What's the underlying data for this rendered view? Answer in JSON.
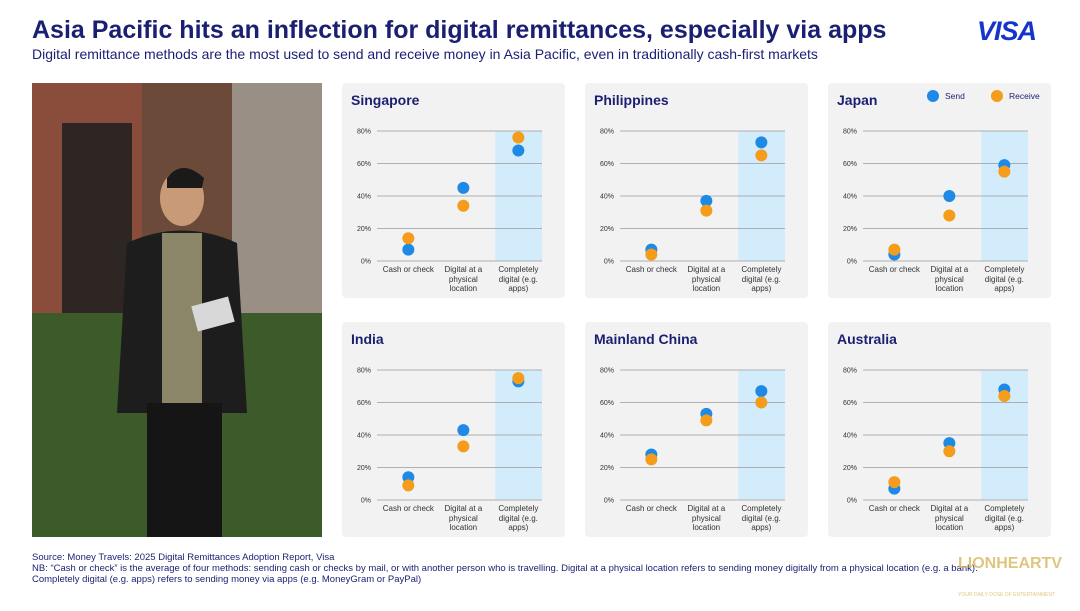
{
  "header": {
    "title": "Asia Pacific hits an inflection for digital remittances, especially via apps",
    "subtitle": "Digital remittance methods are the most used to send and receive money in Asia Pacific, even in traditionally cash-first markets",
    "logo": "VISA"
  },
  "chart_data": [
    {
      "type": "dot",
      "title": "Singapore",
      "categories": [
        "Cash or check",
        "Digital at a physical location",
        "Completely digital (e.g. apps)"
      ],
      "highlight_category": "Completely digital (e.g. apps)",
      "series": [
        {
          "color": "#1e8ae6",
          "values": [
            7,
            45,
            68
          ]
        },
        {
          "color": "#f59c1a",
          "values": [
            14,
            34,
            76
          ]
        }
      ],
      "ylim": [
        0,
        80
      ],
      "yticks": [
        {
          "value": 0,
          "label": "0%"
        },
        {
          "value": 20,
          "label": "20%"
        },
        {
          "value": 40,
          "label": "40%"
        },
        {
          "value": 60,
          "label": "60%"
        },
        {
          "value": 80,
          "label": "80%"
        }
      ],
      "grid": true
    },
    {
      "type": "dot",
      "title": "Philippines",
      "categories": [
        "Cash or check",
        "Digital at a physical location",
        "Completely digital (e.g. apps)"
      ],
      "highlight_category": "Completely digital (e.g. apps)",
      "series": [
        {
          "color": "#1e8ae6",
          "values": [
            7,
            37,
            73
          ]
        },
        {
          "color": "#f59c1a",
          "values": [
            4,
            31,
            65
          ]
        }
      ],
      "ylim": [
        0,
        80
      ],
      "yticks": [
        {
          "value": 0,
          "label": "0%"
        },
        {
          "value": 20,
          "label": "20%"
        },
        {
          "value": 40,
          "label": "40%"
        },
        {
          "value": 60,
          "label": "60%"
        },
        {
          "value": 80,
          "label": "80%"
        }
      ],
      "grid": true
    },
    {
      "type": "dot",
      "title": "Japan",
      "categories": [
        "Cash or check",
        "Digital at a physical location",
        "Completely digital (e.g. apps)"
      ],
      "highlight_category": "Completely digital (e.g. apps)",
      "series": [
        {
          "name": "Send",
          "color": "#1e8ae6",
          "values": [
            4,
            40,
            59
          ]
        },
        {
          "name": "Receive",
          "color": "#f59c1a",
          "values": [
            7,
            28,
            55
          ]
        }
      ],
      "legend": "top-right",
      "ylim": [
        0,
        80
      ],
      "yticks": [
        {
          "value": 0,
          "label": "0%"
        },
        {
          "value": 20,
          "label": "20%"
        },
        {
          "value": 40,
          "label": "40%"
        },
        {
          "value": 60,
          "label": "60%"
        },
        {
          "value": 80,
          "label": "80%"
        }
      ],
      "grid": true
    },
    {
      "type": "dot",
      "title": "India",
      "categories": [
        "Cash or check",
        "Digital at a physical location",
        "Completely digital (e.g. apps)"
      ],
      "highlight_category": "Completely digital (e.g. apps)",
      "series": [
        {
          "color": "#1e8ae6",
          "values": [
            14,
            43,
            73
          ]
        },
        {
          "color": "#f59c1a",
          "values": [
            9,
            33,
            75
          ]
        }
      ],
      "ylim": [
        0,
        80
      ],
      "yticks": [
        {
          "value": 0,
          "label": "0%"
        },
        {
          "value": 20,
          "label": "20%"
        },
        {
          "value": 40,
          "label": "40%"
        },
        {
          "value": 60,
          "label": "60%"
        },
        {
          "value": 80,
          "label": "80%"
        }
      ],
      "grid": true
    },
    {
      "type": "dot",
      "title": "Mainland China",
      "categories": [
        "Cash or check",
        "Digital at a physical location",
        "Completely digital (e.g. apps)"
      ],
      "highlight_category": "Completely digital (e.g. apps)",
      "series": [
        {
          "color": "#1e8ae6",
          "values": [
            28,
            53,
            67
          ]
        },
        {
          "color": "#f59c1a",
          "values": [
            25,
            49,
            60
          ]
        }
      ],
      "ylim": [
        0,
        80
      ],
      "yticks": [
        {
          "value": 0,
          "label": "0%"
        },
        {
          "value": 20,
          "label": "20%"
        },
        {
          "value": 40,
          "label": "40%"
        },
        {
          "value": 60,
          "label": "60%"
        },
        {
          "value": 80,
          "label": "80%"
        }
      ],
      "grid": true
    },
    {
      "type": "dot",
      "title": "Australia",
      "categories": [
        "Cash or check",
        "Digital at a physical location",
        "Completely digital (e.g. apps)"
      ],
      "highlight_category": "Completely digital (e.g. apps)",
      "series": [
        {
          "color": "#1e8ae6",
          "values": [
            7,
            35,
            68
          ]
        },
        {
          "color": "#f59c1a",
          "values": [
            11,
            30,
            64
          ]
        }
      ],
      "ylim": [
        0,
        80
      ],
      "yticks": [
        {
          "value": 0,
          "label": "0%"
        },
        {
          "value": 20,
          "label": "20%"
        },
        {
          "value": 40,
          "label": "40%"
        },
        {
          "value": 60,
          "label": "60%"
        },
        {
          "value": 80,
          "label": "80%"
        }
      ],
      "grid": true
    }
  ],
  "footer": {
    "source": "Source: Money Travels: 2025 Digital Remittances Adoption Report, Visa",
    "note_1": "NB: “Cash or check” is the average of four methods: sending cash or checks by mail, or with another person who is travelling. Digital at a physical location refers to sending money digitally from a physical location (e.g. a bank).",
    "note_2": "Completely digital (e.g. apps) refers to sending money via apps (e.g. MoneyGram or PayPal)"
  },
  "watermark": {
    "name": "LIONHEARTV",
    "tagline": "YOUR DAILY DOSE OF ENTERTAINMENT"
  }
}
